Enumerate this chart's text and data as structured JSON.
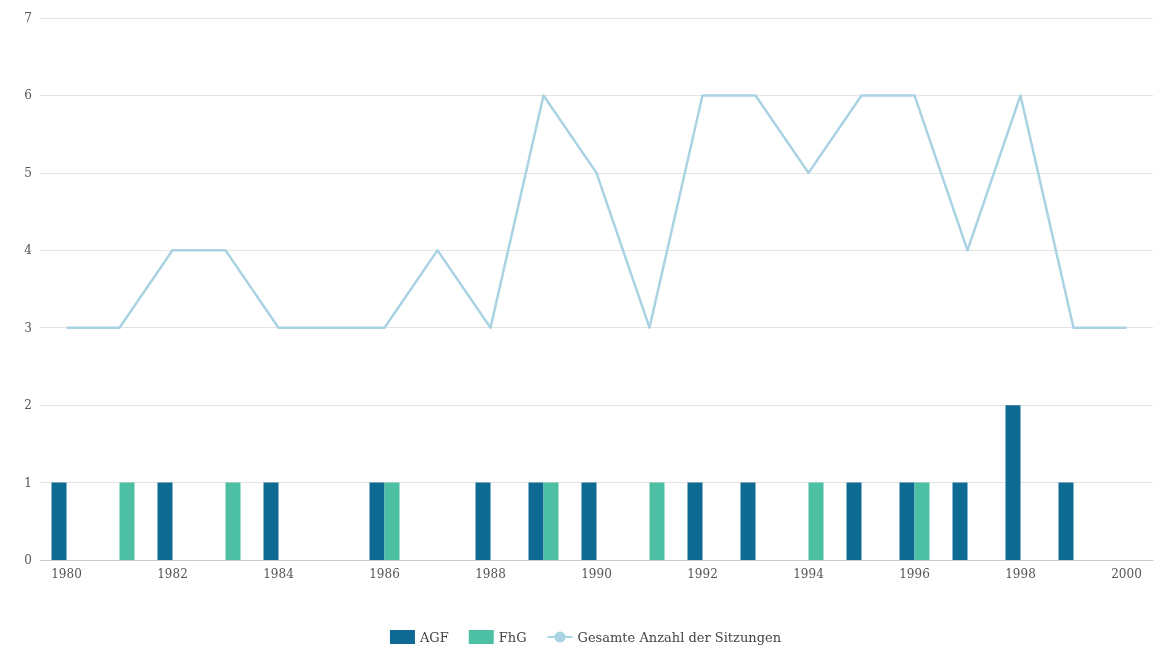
{
  "chart_data": {
    "type": "bar",
    "categories": [
      "1980",
      null,
      "1982",
      null,
      "1984",
      null,
      "1986",
      null,
      "1988",
      null,
      "1990",
      null,
      "1992",
      null,
      "1994",
      null,
      "1996",
      null,
      "1998",
      null,
      "2000"
    ],
    "series": [
      {
        "name": "AGF",
        "color": "#0e6a93",
        "values": [
          1,
          null,
          1,
          null,
          1,
          null,
          1,
          null,
          1,
          1,
          1,
          null,
          1,
          1,
          null,
          1,
          1,
          1,
          2,
          1,
          null
        ]
      },
      {
        "name": "FhG",
        "color": "#4dbfa3",
        "values": [
          null,
          1,
          null,
          1,
          null,
          null,
          1,
          null,
          null,
          1,
          null,
          1,
          null,
          null,
          1,
          null,
          1,
          null,
          null,
          null,
          null
        ]
      },
      {
        "name": "Gesamte Anzahl der Sitzungen",
        "type": "line",
        "color": "#a9d3e3",
        "values": [
          3,
          3,
          4,
          4,
          3,
          3,
          3,
          4,
          3,
          6,
          5,
          3,
          6,
          6,
          5,
          6,
          6,
          4,
          6,
          3,
          3
        ]
      }
    ],
    "ylim": [
      0,
      7
    ],
    "yticks": [
      0,
      1,
      2,
      3,
      4,
      5,
      6,
      7
    ],
    "grid": "y",
    "legend": "bottom",
    "marker": "none"
  }
}
